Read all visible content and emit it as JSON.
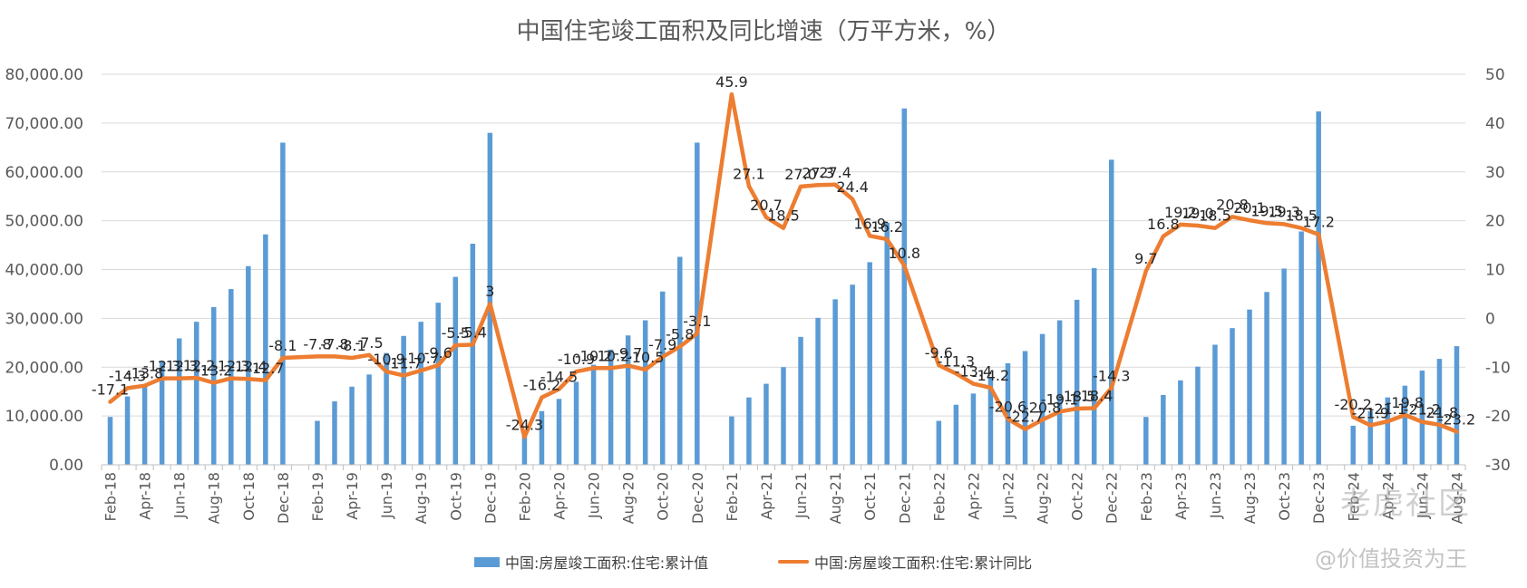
{
  "chart_data": {
    "type": "bar+line",
    "title": "中国住宅竣工面积及同比增速（万平方米，%）",
    "categories": [
      "Feb-18",
      "Mar-18",
      "Apr-18",
      "May-18",
      "Jun-18",
      "Jul-18",
      "Aug-18",
      "Sep-18",
      "Oct-18",
      "Nov-18",
      "Dec-18",
      "Jan-19",
      "Feb-19",
      "Mar-19",
      "Apr-19",
      "May-19",
      "Jun-19",
      "Jul-19",
      "Aug-19",
      "Sep-19",
      "Oct-19",
      "Nov-19",
      "Dec-19",
      "Jan-20",
      "Feb-20",
      "Mar-20",
      "Apr-20",
      "May-20",
      "Jun-20",
      "Jul-20",
      "Aug-20",
      "Sep-20",
      "Oct-20",
      "Nov-20",
      "Dec-20",
      "Jan-21",
      "Feb-21",
      "Mar-21",
      "Apr-21",
      "May-21",
      "Jun-21",
      "Jul-21",
      "Aug-21",
      "Sep-21",
      "Oct-21",
      "Nov-21",
      "Dec-21",
      "Jan-22",
      "Feb-22",
      "Mar-22",
      "Apr-22",
      "May-22",
      "Jun-22",
      "Jul-22",
      "Aug-22",
      "Sep-22",
      "Oct-22",
      "Nov-22",
      "Dec-22",
      "Jan-23",
      "Feb-23",
      "Mar-23",
      "Apr-23",
      "May-23",
      "Jun-23",
      "Jul-23",
      "Aug-23",
      "Sep-23",
      "Oct-23",
      "Nov-23",
      "Dec-23",
      "Jan-24",
      "Feb-24",
      "Mar-24",
      "Apr-24",
      "May-24",
      "Jun-24",
      "Jul-24",
      "Aug-24"
    ],
    "tick_labels": [
      "Feb-18",
      "Apr-18",
      "Jun-18",
      "Aug-18",
      "Oct-18",
      "Dec-18",
      "Feb-19",
      "Apr-19",
      "Jun-19",
      "Aug-19",
      "Oct-19",
      "Dec-19",
      "Feb-20",
      "Apr-20",
      "Jun-20",
      "Aug-20",
      "Oct-20",
      "Dec-20",
      "Feb-21",
      "Apr-21",
      "Jun-21",
      "Aug-21",
      "Oct-21",
      "Dec-21",
      "Feb-22",
      "Apr-22",
      "Jun-22",
      "Aug-22",
      "Oct-22",
      "Dec-22",
      "Feb-23",
      "Apr-23",
      "Jun-23",
      "Aug-23",
      "Oct-23",
      "Dec-23",
      "Feb-24",
      "Apr-24",
      "Jun-24",
      "Aug-24"
    ],
    "left_axis": {
      "ylim": [
        0,
        80000
      ],
      "ticks": [
        "0.00",
        "10,000.00",
        "20,000.00",
        "30,000.00",
        "40,000.00",
        "50,000.00",
        "60,000.00",
        "70,000.00",
        "80,000.00"
      ]
    },
    "right_axis": {
      "ylim": [
        -30,
        50
      ],
      "ticks": [
        "-30",
        "-20",
        "-10",
        "0",
        "10",
        "20",
        "30",
        "40",
        "50"
      ]
    },
    "grid": true,
    "legend_position": "bottom-center",
    "series": [
      {
        "name": "中国:房屋竣工面积:住宅:累计值",
        "type": "bar",
        "axis": "left",
        "color": "#5b9bd5",
        "values": [
          9800,
          14000,
          16300,
          21200,
          25900,
          29300,
          32300,
          36000,
          40700,
          47200,
          66000,
          null,
          9000,
          13000,
          16000,
          18500,
          22900,
          26400,
          29300,
          33200,
          38500,
          45300,
          68000,
          null,
          6800,
          11000,
          13500,
          17000,
          20500,
          23600,
          26500,
          29600,
          35500,
          42600,
          66000,
          null,
          9900,
          13800,
          16600,
          20000,
          26200,
          30100,
          33900,
          36900,
          41500,
          49600,
          73000,
          null,
          9000,
          12300,
          14600,
          17800,
          20800,
          23300,
          26800,
          29600,
          33800,
          40300,
          62500,
          null,
          9800,
          14300,
          17300,
          20100,
          24600,
          28000,
          31800,
          35400,
          40200,
          47800,
          72400,
          null,
          8000,
          11000,
          13800,
          16200,
          19300,
          21700,
          24300
        ]
      },
      {
        "name": "中国:房屋竣工面积:住宅:累计同比",
        "type": "line",
        "axis": "right",
        "color": "#ed7d31",
        "values": [
          -17.1,
          -14.3,
          -13.8,
          -12.3,
          -12.3,
          -12.2,
          -13.2,
          -12.3,
          -12.4,
          -12.7,
          -8.1,
          null,
          -7.8,
          -7.8,
          -8.1,
          -7.5,
          -10.9,
          -11.7,
          -10.7,
          -9.6,
          -5.5,
          -5.4,
          3,
          null,
          -24.3,
          -16.2,
          -14.5,
          -10.9,
          -10.2,
          -10.2,
          -9.7,
          -10.5,
          -7.9,
          -5.8,
          -3.1,
          null,
          45.9,
          27.1,
          20.7,
          18.5,
          27.0,
          27.3,
          27.4,
          24.4,
          16.9,
          16.2,
          10.8,
          null,
          -9.6,
          -11.3,
          -13.4,
          -14.2,
          -20.6,
          -22.7,
          -20.8,
          -19.1,
          -18.5,
          -18.4,
          -14.3,
          null,
          9.7,
          16.8,
          19.2,
          19.0,
          18.5,
          20.8,
          20.1,
          19.5,
          19.3,
          18.5,
          17.2,
          null,
          -20.2,
          -21.9,
          -21.1,
          -19.8,
          -21.2,
          -21.8,
          -23.2
        ]
      }
    ],
    "data_labels": [
      {
        "i": 0,
        "t": "-17.1"
      },
      {
        "i": 1,
        "t": "-14.3"
      },
      {
        "i": 2,
        "t": "-13.8"
      },
      {
        "i": 3,
        "t": "-12.3"
      },
      {
        "i": 4,
        "t": "-12.3"
      },
      {
        "i": 5,
        "t": "-12.2"
      },
      {
        "i": 6,
        "t": "-13.2"
      },
      {
        "i": 7,
        "t": "-12.3"
      },
      {
        "i": 8,
        "t": "-12.4"
      },
      {
        "i": 9,
        "t": "-12.7"
      },
      {
        "i": 10,
        "t": "-8.1"
      },
      {
        "i": 12,
        "t": "-7.8"
      },
      {
        "i": 13,
        "t": "-7.8"
      },
      {
        "i": 14,
        "t": "-8.1"
      },
      {
        "i": 15,
        "t": "-7.5"
      },
      {
        "i": 16,
        "t": "-10.9"
      },
      {
        "i": 17,
        "t": "-11.7"
      },
      {
        "i": 18,
        "t": "-10.7"
      },
      {
        "i": 19,
        "t": "-9.6"
      },
      {
        "i": 20,
        "t": "-5.5"
      },
      {
        "i": 21,
        "t": "-5.4"
      },
      {
        "i": 22,
        "t": "3"
      },
      {
        "i": 24,
        "t": "-24.3"
      },
      {
        "i": 25,
        "t": "-16.2"
      },
      {
        "i": 26,
        "t": "-14.5"
      },
      {
        "i": 27,
        "t": "-10.9"
      },
      {
        "i": 28,
        "t": "-10.2"
      },
      {
        "i": 29,
        "t": "-10.2"
      },
      {
        "i": 30,
        "t": "-9.7"
      },
      {
        "i": 31,
        "t": "-10.5"
      },
      {
        "i": 32,
        "t": "-7.9"
      },
      {
        "i": 33,
        "t": "-5.8"
      },
      {
        "i": 34,
        "t": "-3.1"
      },
      {
        "i": 36,
        "t": "45.9"
      },
      {
        "i": 37,
        "t": "27.1"
      },
      {
        "i": 38,
        "t": "20.7"
      },
      {
        "i": 39,
        "t": "18.5"
      },
      {
        "i": 40,
        "t": "27.0"
      },
      {
        "i": 41,
        "t": "27.3"
      },
      {
        "i": 42,
        "t": "27.4"
      },
      {
        "i": 43,
        "t": "24.4"
      },
      {
        "i": 44,
        "t": "16.9"
      },
      {
        "i": 45,
        "t": "16.2"
      },
      {
        "i": 46,
        "t": "10.8"
      },
      {
        "i": 48,
        "t": "-9.6"
      },
      {
        "i": 49,
        "t": "-11.3"
      },
      {
        "i": 50,
        "t": "-13.4"
      },
      {
        "i": 51,
        "t": "-14.2"
      },
      {
        "i": 52,
        "t": "-20.6"
      },
      {
        "i": 53,
        "t": "-22.7"
      },
      {
        "i": 54,
        "t": "-20.8"
      },
      {
        "i": 55,
        "t": "-19.1"
      },
      {
        "i": 56,
        "t": "-18.5"
      },
      {
        "i": 57,
        "t": "-18.4"
      },
      {
        "i": 58,
        "t": "-14.3"
      },
      {
        "i": 60,
        "t": "9.7"
      },
      {
        "i": 61,
        "t": "16.8"
      },
      {
        "i": 62,
        "t": "19.2"
      },
      {
        "i": 63,
        "t": "19.0"
      },
      {
        "i": 64,
        "t": "18.5"
      },
      {
        "i": 65,
        "t": "20.8"
      },
      {
        "i": 66,
        "t": "20.1"
      },
      {
        "i": 67,
        "t": "19.5"
      },
      {
        "i": 68,
        "t": "19.3"
      },
      {
        "i": 69,
        "t": "18.5"
      },
      {
        "i": 70,
        "t": "17.2"
      },
      {
        "i": 72,
        "t": "-20.2"
      },
      {
        "i": 73,
        "t": "-21.9"
      },
      {
        "i": 74,
        "t": "-21.1"
      },
      {
        "i": 75,
        "t": "-19.8"
      },
      {
        "i": 76,
        "t": "-21.2"
      },
      {
        "i": 77,
        "t": "-21.8"
      },
      {
        "i": 78,
        "t": "-23.2"
      }
    ]
  },
  "legend": {
    "bar_label": "中国:房屋竣工面积:住宅:累计值",
    "line_label": "中国:房屋竣工面积:住宅:累计同比"
  },
  "watermark": {
    "brand": "老虎社区",
    "handle": "@价值投资为王"
  }
}
